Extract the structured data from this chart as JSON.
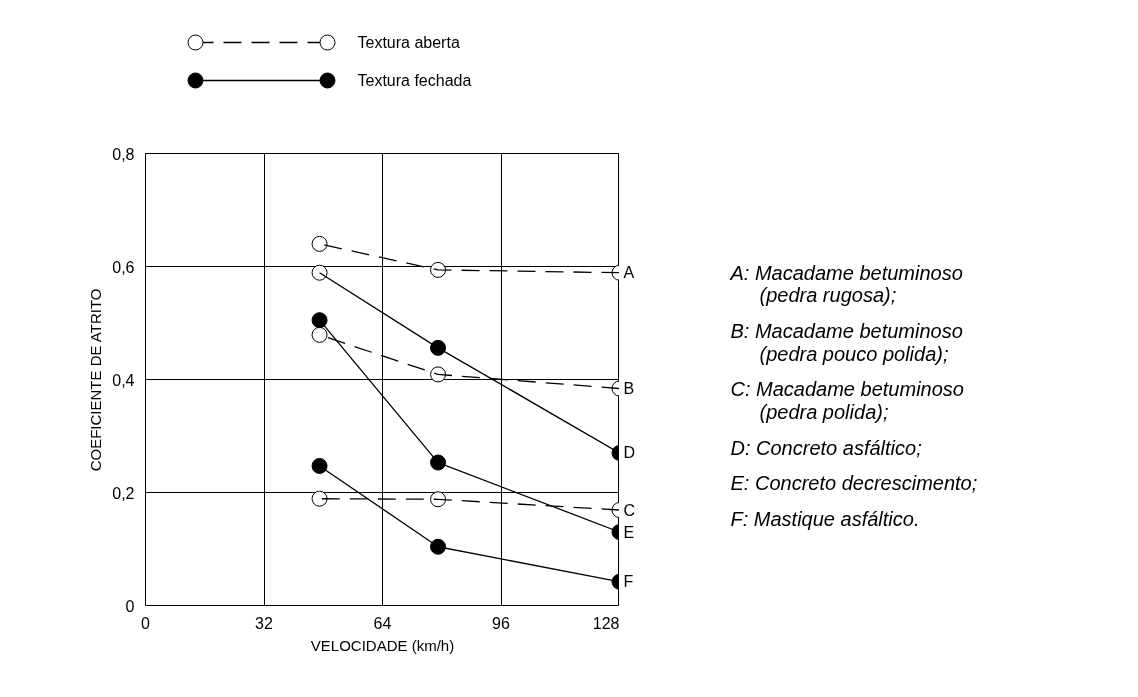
{
  "chart_data": {
    "type": "line",
    "xlabel": "VELOCIDADE (km/h)",
    "ylabel": "COEFICIENTE DE ATRITO",
    "x": [
      47,
      79,
      128
    ],
    "series": [
      {
        "name": "A",
        "color": "#000000",
        "line_style": "dashed",
        "colors": [
          "#ffffff",
          "#ffffff",
          "#ffffff"
        ],
        "values": [
          0.64,
          0.594,
          0.589
        ]
      },
      {
        "name": "B",
        "color": "#000000",
        "line_style": "dashed",
        "colors": [
          "#ffffff",
          "#ffffff",
          "#ffffff"
        ],
        "values": [
          0.479,
          0.409,
          0.384
        ]
      },
      {
        "name": "C",
        "color": "#000000",
        "line_style": "dashed",
        "colors": [
          "#ffffff",
          "#ffffff",
          "#ffffff"
        ],
        "values": [
          0.189,
          0.188,
          0.169
        ]
      },
      {
        "name": "D",
        "color": "#000000",
        "line_style": "solid",
        "colors": [
          "#ffffff",
          "#000000",
          "#000000"
        ],
        "values": [
          0.589,
          0.456,
          0.27
        ]
      },
      {
        "name": "E",
        "color": "#000000",
        "line_style": "solid",
        "colors": [
          "#000000",
          "#000000",
          "#000000"
        ],
        "values": [
          0.505,
          0.253,
          0.13
        ]
      },
      {
        "name": "F",
        "color": "#000000",
        "line_style": "solid",
        "colors": [
          "#000000",
          "#000000",
          "#000000"
        ],
        "values": [
          0.247,
          0.104,
          0.042
        ]
      }
    ],
    "xlim": [
      0,
      128
    ],
    "xticks": [
      0,
      32,
      64,
      96,
      128
    ],
    "ylim": [
      0,
      0.8
    ],
    "yticks": [
      {
        "value": 0,
        "label": "0"
      },
      {
        "value": 0.2,
        "label": "0,2"
      },
      {
        "value": 0.4,
        "label": "0,4"
      },
      {
        "value": 0.6,
        "label": "0,6"
      },
      {
        "value": 0.8,
        "label": "0,8"
      }
    ],
    "grid": true,
    "marker": "circle",
    "annotations": [
      "Textura aberta",
      "Textura fechada",
      "A:  Macadame betuminoso\n(pedra rugosa);",
      "B:  Macadame betuminoso\n(pedra pouco polida);",
      "C:  Macadame betuminoso\n(pedra polida);",
      "D:  Concreto asfáltico;",
      "E:  Concreto decrescimento;",
      "F:  Mastique asfáltico."
    ]
  }
}
